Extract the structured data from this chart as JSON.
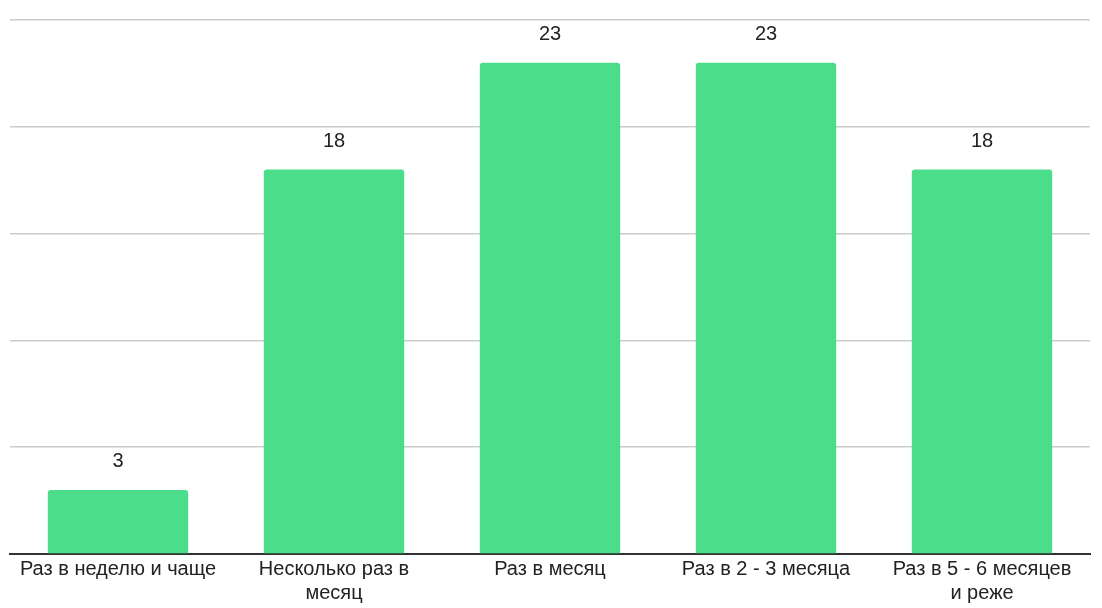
{
  "chart_data": {
    "type": "bar",
    "categories": [
      "Раз в неделю и чаще",
      "Несколько раз в месяц",
      "Раз в месяц",
      "Раз в 2 - 3 месяца",
      "Раз в 5 - 6 месяцев и реже"
    ],
    "values": [
      3,
      18,
      23,
      23,
      18
    ],
    "color": "#4cdd8b",
    "ylim": [
      0,
      25
    ],
    "yticks": [
      {
        "value": 0,
        "label": null
      },
      {
        "value": 5,
        "label": null
      },
      {
        "value": 10,
        "label": null
      },
      {
        "value": 15,
        "label": null
      },
      {
        "value": 20,
        "label": null
      },
      {
        "value": 25,
        "label": null
      }
    ],
    "grid": "y",
    "tick_labels": "x",
    "data_labels": true,
    "legend": false
  }
}
